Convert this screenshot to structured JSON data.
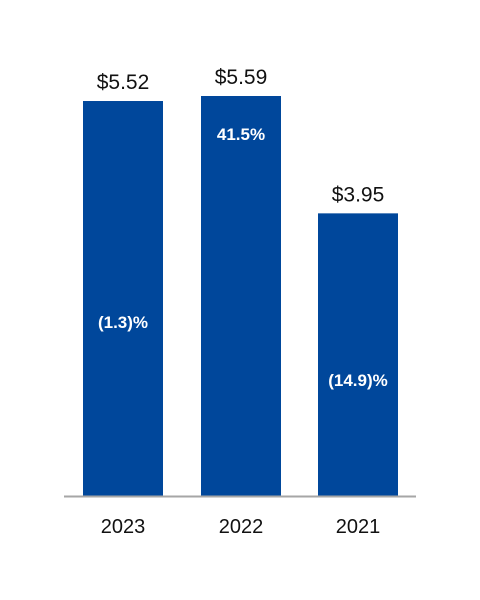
{
  "chart_data": {
    "type": "bar",
    "categories": [
      "2023",
      "2022",
      "2021"
    ],
    "values": [
      5.52,
      5.59,
      3.95
    ],
    "value_labels": [
      "$5.52",
      "$5.59",
      "$3.95"
    ],
    "change_labels": [
      "(1.3)%",
      "41.5%",
      "(14.9)%"
    ],
    "title": "",
    "xlabel": "",
    "ylabel": "",
    "ylim": [
      0,
      5.59
    ],
    "grid": false,
    "colors": {
      "bar": "#00479b",
      "axis": "#a6a6a6"
    }
  }
}
